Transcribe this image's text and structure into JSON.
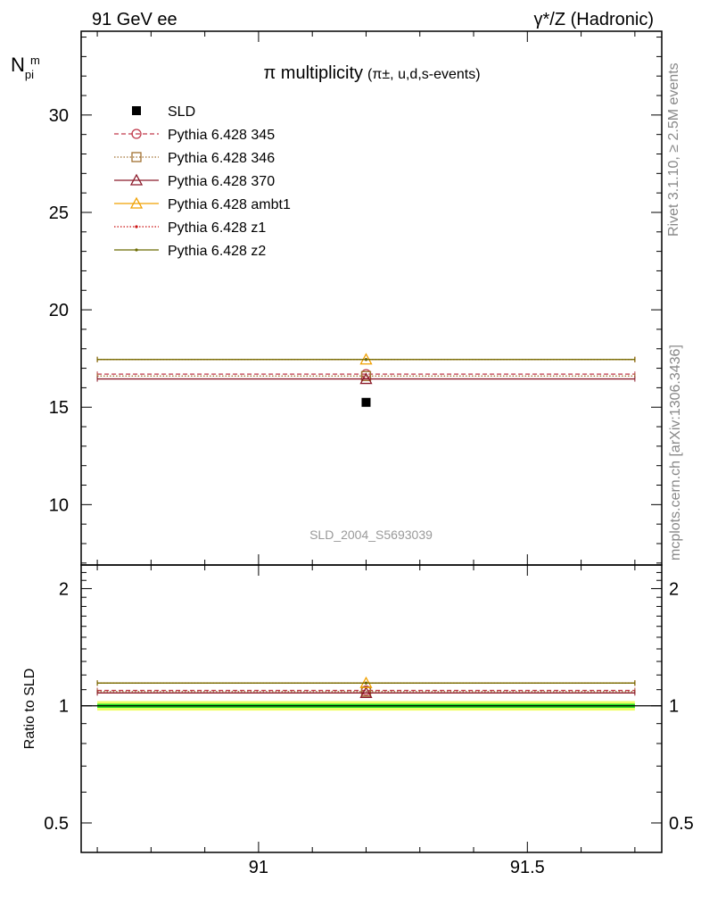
{
  "header": {
    "left": "91 GeV ee",
    "right": "γ*/Z (Hadronic)"
  },
  "side_labels": {
    "rivet": "Rivet 3.1.10, ≥ 2.5M events",
    "mcplots": "mcplots.cern.ch [arXiv:1306.3436]"
  },
  "chart_data": [
    {
      "type": "scatter",
      "panel": "main",
      "title": "π multiplicity",
      "title_suffix": "(π±, u,d,s-events)",
      "ylabel": "N_pi^m",
      "ylabel_main": "N",
      "ylabel_sub": "pi",
      "ylabel_sup": "m",
      "watermark": "SLD_2004_S5693039",
      "xlim": [
        90.67,
        91.75
      ],
      "ylim": [
        6.9,
        34.3
      ],
      "yticks": [
        10,
        15,
        20,
        25,
        30
      ],
      "ytick_labels": [
        "10",
        "15",
        "20",
        "25",
        "30"
      ],
      "legend_position": "top-left",
      "series": [
        {
          "name": "SLD",
          "color": "#000000",
          "style": "data",
          "marker": "square",
          "x": [
            91.2
          ],
          "values": [
            15.25
          ],
          "xerr": [
            0
          ]
        },
        {
          "name": "Pythia 6.428 345",
          "color": "#c0394b",
          "style": "dashed",
          "marker": "circle-open",
          "x": [
            91.2
          ],
          "values": [
            16.7
          ],
          "xrange": [
            90.7,
            91.7
          ]
        },
        {
          "name": "Pythia 6.428 346",
          "color": "#a07030",
          "style": "dotted",
          "marker": "square-open",
          "x": [
            91.2
          ],
          "values": [
            16.6
          ],
          "xrange": [
            90.7,
            91.7
          ]
        },
        {
          "name": "Pythia 6.428 370",
          "color": "#8b1a2a",
          "style": "solid",
          "marker": "triangle-open",
          "x": [
            91.2
          ],
          "values": [
            16.45
          ],
          "xrange": [
            90.7,
            91.7
          ]
        },
        {
          "name": "Pythia 6.428 ambt1",
          "color": "#f0a000",
          "style": "solid",
          "marker": "triangle-open",
          "x": [
            91.2
          ],
          "values": [
            17.45
          ],
          "xrange": [
            90.7,
            91.7
          ]
        },
        {
          "name": "Pythia 6.428 z1",
          "color": "#cc1111",
          "style": "dotted",
          "marker": "dot",
          "x": [
            91.2
          ],
          "values": [
            17.45
          ],
          "xrange": [
            90.7,
            91.7
          ]
        },
        {
          "name": "Pythia 6.428 z2",
          "color": "#6b6b00",
          "style": "solid",
          "marker": "dot",
          "x": [
            91.2
          ],
          "values": [
            17.45
          ],
          "xrange": [
            90.7,
            91.7
          ]
        }
      ]
    },
    {
      "type": "scatter",
      "panel": "ratio",
      "ylabel": "Ratio to SLD",
      "xlim": [
        90.67,
        91.75
      ],
      "ylim": [
        0.42,
        2.3
      ],
      "ylog": true,
      "xticks": [
        91,
        91.5
      ],
      "xtick_labels": [
        "91",
        "91.5"
      ],
      "yticks": [
        0.5,
        1,
        2
      ],
      "ytick_labels": [
        "0.5",
        "1",
        "2"
      ],
      "band": {
        "center": 1.0,
        "inner": 0.012,
        "outer": 0.028,
        "inner_color": "#22dd22",
        "outer_color": "#eeff66"
      },
      "series": [
        {
          "name": "Pythia 6.428 345",
          "color": "#c0394b",
          "style": "dashed",
          "marker": "circle-open",
          "values": [
            1.095
          ]
        },
        {
          "name": "Pythia 6.428 346",
          "color": "#a07030",
          "style": "dotted",
          "marker": "square-open",
          "values": [
            1.088
          ]
        },
        {
          "name": "Pythia 6.428 370",
          "color": "#8b1a2a",
          "style": "solid",
          "marker": "triangle-open",
          "values": [
            1.079
          ]
        },
        {
          "name": "Pythia 6.428 ambt1",
          "color": "#f0a000",
          "style": "solid",
          "marker": "triangle-open",
          "values": [
            1.144
          ]
        },
        {
          "name": "Pythia 6.428 z1",
          "color": "#cc1111",
          "style": "dotted",
          "marker": "dot",
          "values": [
            1.144
          ]
        },
        {
          "name": "Pythia 6.428 z2",
          "color": "#6b6b00",
          "style": "solid",
          "marker": "dot",
          "values": [
            1.144
          ]
        }
      ]
    }
  ]
}
